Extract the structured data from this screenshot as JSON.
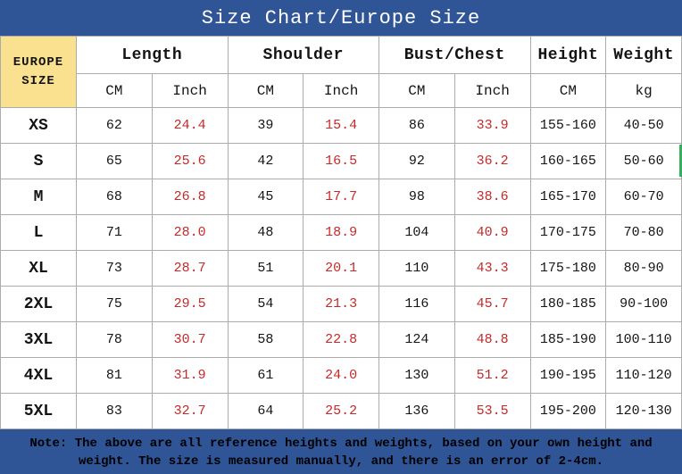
{
  "chart_data": {
    "type": "table",
    "title": "Size Chart/Europe Size",
    "corner_header_lines": [
      "EUROPE",
      "SIZE"
    ],
    "column_groups": [
      {
        "label": "Length",
        "span": 2
      },
      {
        "label": "Shoulder",
        "span": 2
      },
      {
        "label": "Bust/Chest",
        "span": 2
      },
      {
        "label": "Height",
        "span": 1
      },
      {
        "label": "Weight",
        "span": 1
      }
    ],
    "subheaders": [
      "CM",
      "Inch",
      "CM",
      "Inch",
      "CM",
      "Inch",
      "CM",
      "kg"
    ],
    "red_value_indices": [
      1,
      3,
      5
    ],
    "rows": [
      {
        "size": "XS",
        "values": [
          "62",
          "24.4",
          "39",
          "15.4",
          "86",
          "33.9",
          "155-160",
          "40-50"
        ]
      },
      {
        "size": "S",
        "values": [
          "65",
          "25.6",
          "42",
          "16.5",
          "92",
          "36.2",
          "160-165",
          "50-60"
        ]
      },
      {
        "size": "M",
        "values": [
          "68",
          "26.8",
          "45",
          "17.7",
          "98",
          "38.6",
          "165-170",
          "60-70"
        ]
      },
      {
        "size": "L",
        "values": [
          "71",
          "28.0",
          "48",
          "18.9",
          "104",
          "40.9",
          "170-175",
          "70-80"
        ]
      },
      {
        "size": "XL",
        "values": [
          "73",
          "28.7",
          "51",
          "20.1",
          "110",
          "43.3",
          "175-180",
          "80-90"
        ]
      },
      {
        "size": "2XL",
        "values": [
          "75",
          "29.5",
          "54",
          "21.3",
          "116",
          "45.7",
          "180-185",
          "90-100"
        ]
      },
      {
        "size": "3XL",
        "values": [
          "78",
          "30.7",
          "58",
          "22.8",
          "124",
          "48.8",
          "185-190",
          "100-110"
        ]
      },
      {
        "size": "4XL",
        "values": [
          "81",
          "31.9",
          "61",
          "24.0",
          "130",
          "51.2",
          "190-195",
          "110-120"
        ]
      },
      {
        "size": "5XL",
        "values": [
          "83",
          "32.7",
          "64",
          "25.2",
          "136",
          "53.5",
          "195-200",
          "120-130"
        ]
      }
    ],
    "note_lines": [
      "Note: The above are all reference heights and weights, based on your own height and",
      "weight. The size is measured manually, and there is an error of 2-4cm."
    ],
    "colors": {
      "header_blue": "#2F5597",
      "corner_yellow": "#FAE18F",
      "inch_red": "#C52A2A",
      "grid_gray": "#ABABAB",
      "edge_green": "#35B05E"
    }
  }
}
